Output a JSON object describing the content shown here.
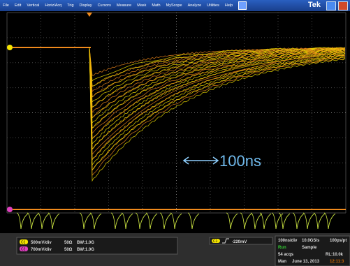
{
  "menu": {
    "items": [
      "File",
      "Edit",
      "Vertical",
      "Horiz/Acq",
      "Trig",
      "Display",
      "Cursors",
      "Measure",
      "Mask",
      "Math",
      "MyScope",
      "Analyze",
      "Utilities",
      "Help"
    ],
    "brand": "Tek"
  },
  "annotation": "100ns",
  "channels": [
    {
      "label": "C1",
      "scale": "500mV/div",
      "impedance": "50Ω",
      "bandwidth": "BW:1.0G"
    },
    {
      "label": "C2",
      "scale": "700mV/div",
      "impedance": "50Ω",
      "bandwidth": "BW:1.0G"
    }
  ],
  "trigger": {
    "source": "C1",
    "level": "-220mV"
  },
  "acquisition": {
    "horizontal": "100ns/div",
    "sample_rate": "10.0GS/s",
    "resolution": "100ps/pt",
    "state": "Run",
    "mode": "Sample",
    "count": "54 acqs",
    "record_length": "RL:10.0k",
    "trigger_mode": "Man",
    "date": "June 13, 2013",
    "time": "12:11:3"
  }
}
